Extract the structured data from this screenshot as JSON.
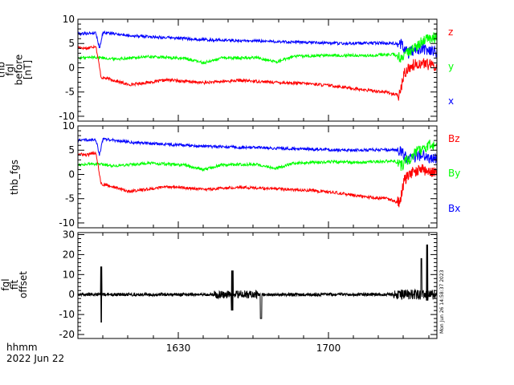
{
  "figure": {
    "bottom_labels": {
      "line1": "hhmm",
      "line2": "2022 Jun 22"
    },
    "timestamp": "Mon Jun 26 14:58:37 2023",
    "x_ticks": [
      "1630",
      "1700"
    ],
    "colors": {
      "red": "#ff0000",
      "green": "#00ff00",
      "blue": "#0000ff",
      "black": "#000000"
    }
  },
  "chart_data": [
    {
      "type": "line",
      "ylabel": [
        "thb",
        "fgl",
        "before",
        "[nT]"
      ],
      "ylim": [
        -11,
        10
      ],
      "y_ticks": [
        "10",
        "5",
        "0",
        "-5",
        "-10"
      ],
      "legend_placement": "right",
      "series": [
        {
          "name": "z",
          "color": "#ff0000",
          "segments": [
            [
              0,
              4.2
            ],
            [
              0.025,
              4.0
            ],
            [
              0.05,
              4.5
            ],
            [
              0.065,
              -2.0
            ],
            [
              0.08,
              -2.2
            ],
            [
              0.11,
              -2.8
            ],
            [
              0.14,
              -3.5
            ],
            [
              0.2,
              -3.0
            ],
            [
              0.25,
              -2.5
            ],
            [
              0.3,
              -2.8
            ],
            [
              0.35,
              -3.1
            ],
            [
              0.45,
              -2.6
            ],
            [
              0.55,
              -3.0
            ],
            [
              0.65,
              -3.3
            ],
            [
              0.72,
              -3.8
            ],
            [
              0.8,
              -4.6
            ],
            [
              0.86,
              -5.0
            ],
            [
              0.895,
              -5.8
            ],
            [
              0.9,
              -4.2
            ],
            [
              0.91,
              -1.0
            ],
            [
              0.93,
              0.5
            ],
            [
              0.96,
              1.0
            ],
            [
              1.0,
              0.2
            ]
          ]
        },
        {
          "name": "y",
          "color": "#00ff00",
          "segments": [
            [
              0,
              2.0
            ],
            [
              0.05,
              2.2
            ],
            [
              0.1,
              1.8
            ],
            [
              0.2,
              2.3
            ],
            [
              0.3,
              1.9
            ],
            [
              0.35,
              1.0
            ],
            [
              0.4,
              2.0
            ],
            [
              0.5,
              2.1
            ],
            [
              0.55,
              1.2
            ],
            [
              0.6,
              2.3
            ],
            [
              0.7,
              2.6
            ],
            [
              0.8,
              2.5
            ],
            [
              0.88,
              2.8
            ],
            [
              0.9,
              1.8
            ],
            [
              0.92,
              3.0
            ],
            [
              0.95,
              5.0
            ],
            [
              0.98,
              6.0
            ],
            [
              1.0,
              6.2
            ]
          ]
        },
        {
          "name": "x",
          "color": "#0000ff",
          "segments": [
            [
              0,
              7.0
            ],
            [
              0.05,
              7.2
            ],
            [
              0.06,
              4.0
            ],
            [
              0.07,
              7.3
            ],
            [
              0.15,
              6.6
            ],
            [
              0.25,
              6.2
            ],
            [
              0.35,
              5.8
            ],
            [
              0.45,
              5.6
            ],
            [
              0.55,
              5.4
            ],
            [
              0.65,
              5.2
            ],
            [
              0.75,
              5.0
            ],
            [
              0.85,
              5.1
            ],
            [
              0.9,
              5.0
            ],
            [
              0.92,
              3.0
            ],
            [
              0.95,
              4.0
            ],
            [
              0.98,
              3.5
            ],
            [
              1.0,
              3.2
            ]
          ]
        }
      ]
    },
    {
      "type": "line",
      "ylabel": [
        "thb_fgs"
      ],
      "ylim": [
        -11,
        10
      ],
      "y_ticks": [
        "10",
        "5",
        "0",
        "-5",
        "-10"
      ],
      "legend_placement": "right",
      "series": [
        {
          "name": "Bz",
          "color": "#ff0000",
          "segments": [
            [
              0,
              4.2
            ],
            [
              0.025,
              4.0
            ],
            [
              0.05,
              4.5
            ],
            [
              0.065,
              -2.0
            ],
            [
              0.08,
              -2.2
            ],
            [
              0.11,
              -2.8
            ],
            [
              0.14,
              -3.5
            ],
            [
              0.2,
              -3.0
            ],
            [
              0.25,
              -2.5
            ],
            [
              0.3,
              -2.8
            ],
            [
              0.35,
              -3.1
            ],
            [
              0.45,
              -2.6
            ],
            [
              0.55,
              -3.0
            ],
            [
              0.65,
              -3.3
            ],
            [
              0.72,
              -3.8
            ],
            [
              0.8,
              -4.6
            ],
            [
              0.86,
              -5.0
            ],
            [
              0.895,
              -5.8
            ],
            [
              0.9,
              -4.2
            ],
            [
              0.91,
              -1.0
            ],
            [
              0.93,
              0.5
            ],
            [
              0.96,
              1.0
            ],
            [
              1.0,
              0.2
            ]
          ]
        },
        {
          "name": "By",
          "color": "#00ff00",
          "segments": [
            [
              0,
              2.0
            ],
            [
              0.05,
              2.2
            ],
            [
              0.1,
              1.8
            ],
            [
              0.2,
              2.3
            ],
            [
              0.3,
              1.9
            ],
            [
              0.35,
              1.0
            ],
            [
              0.4,
              2.0
            ],
            [
              0.5,
              2.1
            ],
            [
              0.55,
              1.2
            ],
            [
              0.6,
              2.3
            ],
            [
              0.7,
              2.6
            ],
            [
              0.8,
              2.5
            ],
            [
              0.88,
              2.8
            ],
            [
              0.9,
              1.8
            ],
            [
              0.92,
              3.0
            ],
            [
              0.95,
              5.0
            ],
            [
              0.98,
              6.0
            ],
            [
              1.0,
              6.2
            ]
          ]
        },
        {
          "name": "Bx",
          "color": "#0000ff",
          "segments": [
            [
              0,
              7.0
            ],
            [
              0.05,
              7.2
            ],
            [
              0.06,
              4.0
            ],
            [
              0.07,
              7.3
            ],
            [
              0.15,
              6.6
            ],
            [
              0.25,
              6.2
            ],
            [
              0.35,
              5.8
            ],
            [
              0.45,
              5.6
            ],
            [
              0.55,
              5.4
            ],
            [
              0.65,
              5.2
            ],
            [
              0.75,
              5.0
            ],
            [
              0.85,
              5.1
            ],
            [
              0.9,
              5.0
            ],
            [
              0.92,
              3.0
            ],
            [
              0.95,
              4.0
            ],
            [
              0.98,
              3.5
            ],
            [
              1.0,
              3.2
            ]
          ]
        }
      ]
    },
    {
      "type": "line",
      "ylabel": [
        "fgl",
        "fit",
        "offset"
      ],
      "ylim": [
        -22,
        31
      ],
      "y_ticks": [
        "30",
        "20",
        "10",
        "0",
        "-10",
        "-20"
      ],
      "series": [
        {
          "color": "#000000",
          "segments": [
            [
              0,
              0
            ],
            [
              0.2,
              0
            ],
            [
              0.4,
              0
            ],
            [
              0.6,
              0
            ],
            [
              0.8,
              0
            ],
            [
              1.0,
              0
            ]
          ]
        }
      ]
    }
  ]
}
